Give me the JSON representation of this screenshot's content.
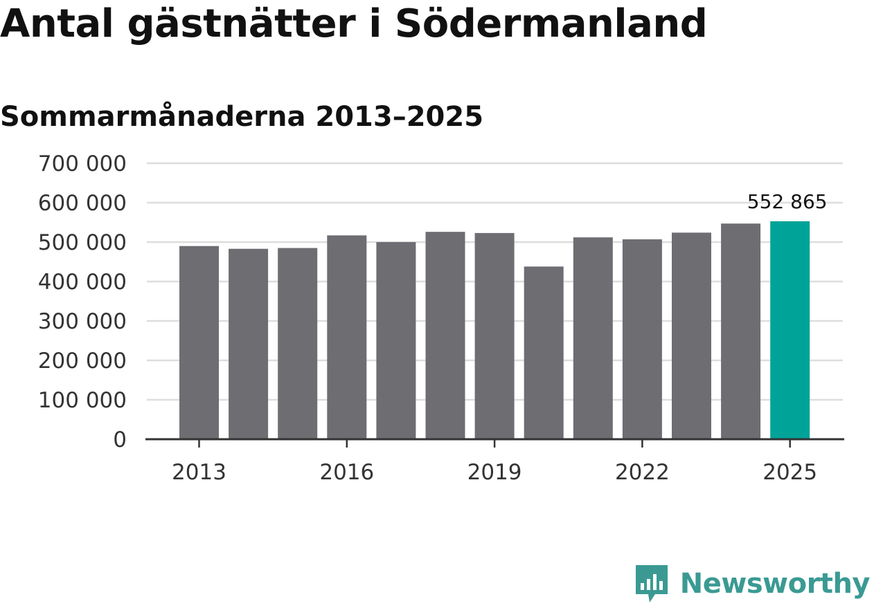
{
  "header": {
    "title": "Antal gästnätter i Södermanland",
    "subtitle": "Sommarmånaderna 2013–2025"
  },
  "brand": {
    "name": "Newsworthy",
    "color": "#3a9a93",
    "icon": "newsworthy-logo-icon"
  },
  "colors": {
    "bar": "#6e6d72",
    "highlight": "#00a398",
    "grid": "#dddddd",
    "axis": "#333333"
  },
  "chart_data": {
    "type": "bar",
    "categories": [
      "2013",
      "2014",
      "2015",
      "2016",
      "2017",
      "2018",
      "2019",
      "2020",
      "2021",
      "2022",
      "2023",
      "2024",
      "2025"
    ],
    "values": [
      490000,
      483000,
      485000,
      517000,
      500000,
      526000,
      523000,
      438000,
      512000,
      507000,
      524000,
      547000,
      552865
    ],
    "highlight_index": 12,
    "data_labels": [
      {
        "index": 12,
        "text": "552 865"
      }
    ],
    "x_tick_labels": [
      "2013",
      "2016",
      "2019",
      "2022",
      "2025"
    ],
    "x_tick_indices": [
      0,
      3,
      6,
      9,
      12
    ],
    "y_ticks": [
      0,
      100000,
      200000,
      300000,
      400000,
      500000,
      600000,
      700000
    ],
    "y_tick_labels": [
      "0",
      "100 000",
      "200 000",
      "300 000",
      "400 000",
      "500 000",
      "600 000",
      "700 000"
    ],
    "ylim": [
      0,
      700000
    ],
    "xlabel": "",
    "ylabel": "",
    "grid": true,
    "legend": "none"
  }
}
